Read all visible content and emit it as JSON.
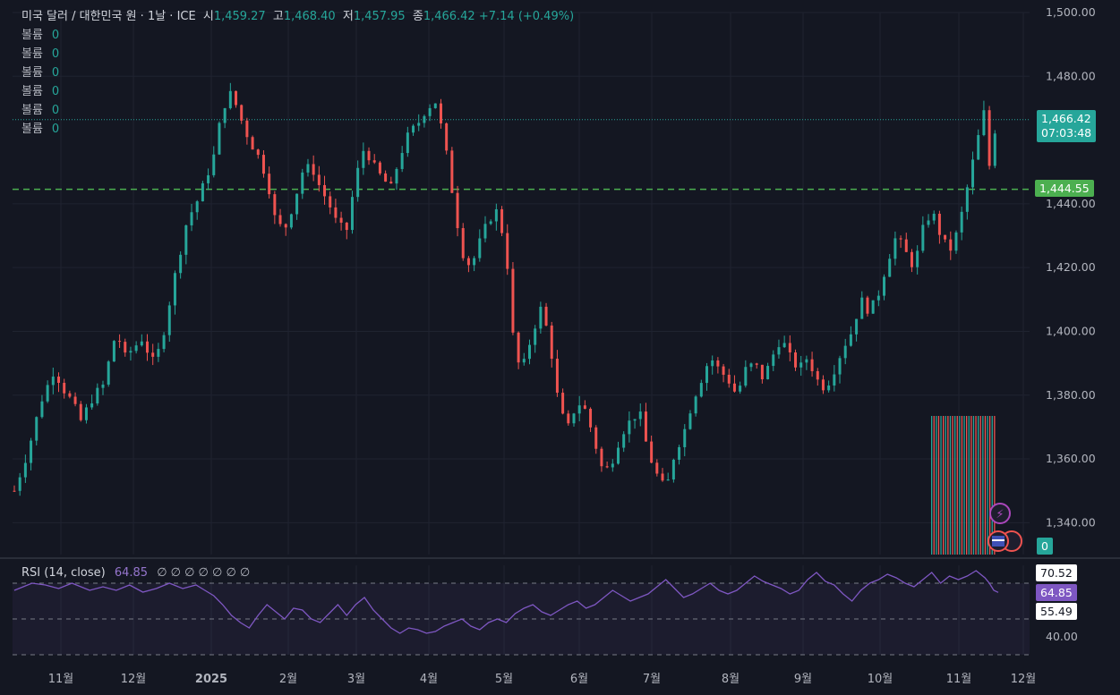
{
  "legend": {
    "symbol": "미국 달러 / 대한민국 원 · 1날 · ICE",
    "open_label": "시",
    "open": "1,459.27",
    "high_label": "고",
    "high": "1,468.40",
    "low_label": "저",
    "low": "1,457.95",
    "close_label": "종",
    "close": "1,466.42",
    "change": "+7.14 (+0.49%)",
    "volume_rows": [
      {
        "label": "볼륨",
        "value": "0"
      },
      {
        "label": "볼륨",
        "value": "0"
      },
      {
        "label": "볼륨",
        "value": "0"
      },
      {
        "label": "볼륨",
        "value": "0"
      },
      {
        "label": "볼륨",
        "value": "0"
      },
      {
        "label": "볼륨",
        "value": "0"
      }
    ]
  },
  "price_tag": {
    "value": "1,466.42",
    "countdown": "07:03:48"
  },
  "line_tag": {
    "value": "1,444.55"
  },
  "volume_tag": {
    "value": "0"
  },
  "rsi": {
    "title": "RSI (14, close)",
    "value": "64.85",
    "empty_values": "∅ ∅ ∅ ∅ ∅ ∅ ∅",
    "tag_upper": "70.52",
    "tag_value": "64.85",
    "tag_lower": "55.49",
    "axis_label": "40.00"
  },
  "colors": {
    "up": "#26a69a",
    "down": "#ef5350",
    "rsi": "#7e57c2",
    "line": "#4caf50"
  },
  "chart_data": {
    "type": "candlestick",
    "y_ticks": [
      "1,500.00",
      "1,480.00",
      "1,440.00",
      "1,420.00",
      "1,400.00",
      "1,380.00",
      "1,360.00",
      "1,340.00"
    ],
    "ylim": [
      1330,
      1500
    ],
    "x_ticks": [
      "11월",
      "12월",
      "2025",
      "2월",
      "3월",
      "4월",
      "5월",
      "6월",
      "7월",
      "8월",
      "9월",
      "10월",
      "11월",
      "12월"
    ],
    "horizontal_line": 1444.55,
    "series": [
      {
        "name": "close",
        "points": [
          [
            0,
            1350
          ],
          [
            6,
            1362
          ],
          [
            12,
            1378
          ],
          [
            18,
            1388
          ],
          [
            22,
            1382
          ],
          [
            26,
            1378
          ],
          [
            30,
            1372
          ],
          [
            36,
            1380
          ],
          [
            40,
            1383
          ],
          [
            46,
            1400
          ],
          [
            50,
            1392
          ],
          [
            54,
            1395
          ],
          [
            58,
            1398
          ],
          [
            62,
            1390
          ],
          [
            66,
            1395
          ],
          [
            72,
            1416
          ],
          [
            78,
            1435
          ],
          [
            82,
            1440
          ],
          [
            86,
            1447
          ],
          [
            90,
            1455
          ],
          [
            94,
            1470
          ],
          [
            98,
            1475
          ],
          [
            102,
            1467
          ],
          [
            106,
            1460
          ],
          [
            110,
            1455
          ],
          [
            114,
            1448
          ],
          [
            118,
            1434
          ],
          [
            122,
            1432
          ],
          [
            126,
            1440
          ],
          [
            130,
            1450
          ],
          [
            134,
            1452
          ],
          [
            138,
            1445
          ],
          [
            142,
            1440
          ],
          [
            146,
            1433
          ],
          [
            150,
            1432
          ],
          [
            154,
            1448
          ],
          [
            158,
            1458
          ],
          [
            162,
            1452
          ],
          [
            166,
            1448
          ],
          [
            170,
            1445
          ],
          [
            174,
            1455
          ],
          [
            178,
            1462
          ],
          [
            182,
            1465
          ],
          [
            186,
            1470
          ],
          [
            190,
            1472
          ],
          [
            194,
            1460
          ],
          [
            198,
            1442
          ],
          [
            202,
            1425
          ],
          [
            206,
            1420
          ],
          [
            210,
            1428
          ],
          [
            214,
            1435
          ],
          [
            218,
            1438
          ],
          [
            222,
            1425
          ],
          [
            226,
            1390
          ],
          [
            230,
            1390
          ],
          [
            234,
            1400
          ],
          [
            238,
            1408
          ],
          [
            242,
            1395
          ],
          [
            246,
            1375
          ],
          [
            250,
            1370
          ],
          [
            254,
            1378
          ],
          [
            258,
            1375
          ],
          [
            262,
            1365
          ],
          [
            266,
            1355
          ],
          [
            270,
            1360
          ],
          [
            274,
            1368
          ],
          [
            278,
            1372
          ],
          [
            282,
            1375
          ],
          [
            286,
            1362
          ],
          [
            290,
            1355
          ],
          [
            294,
            1350
          ],
          [
            298,
            1362
          ],
          [
            302,
            1368
          ],
          [
            306,
            1378
          ],
          [
            310,
            1385
          ],
          [
            314,
            1392
          ],
          [
            318,
            1388
          ],
          [
            322,
            1385
          ],
          [
            326,
            1380
          ],
          [
            330,
            1388
          ],
          [
            334,
            1390
          ],
          [
            338,
            1385
          ],
          [
            342,
            1392
          ],
          [
            346,
            1398
          ],
          [
            350,
            1392
          ],
          [
            354,
            1388
          ],
          [
            358,
            1392
          ],
          [
            362,
            1385
          ],
          [
            366,
            1382
          ],
          [
            370,
            1388
          ],
          [
            374,
            1395
          ],
          [
            378,
            1400
          ],
          [
            382,
            1410
          ],
          [
            386,
            1406
          ],
          [
            390,
            1412
          ],
          [
            394,
            1422
          ],
          [
            398,
            1430
          ],
          [
            402,
            1425
          ],
          [
            406,
            1420
          ],
          [
            410,
            1432
          ],
          [
            414,
            1438
          ],
          [
            418,
            1430
          ],
          [
            422,
            1425
          ],
          [
            426,
            1432
          ],
          [
            430,
            1445
          ],
          [
            434,
            1458
          ],
          [
            438,
            1470
          ],
          [
            440,
            1452
          ],
          [
            442,
            1462
          ],
          [
            444,
            1466.42
          ]
        ]
      }
    ],
    "rsi_series": {
      "name": "RSI (14, close)",
      "levels": [
        70.52,
        55.49,
        40
      ],
      "points": [
        [
          0,
          66
        ],
        [
          8,
          70
        ],
        [
          14,
          69
        ],
        [
          20,
          67
        ],
        [
          26,
          70
        ],
        [
          34,
          66
        ],
        [
          40,
          68
        ],
        [
          46,
          66
        ],
        [
          52,
          69
        ],
        [
          58,
          65
        ],
        [
          64,
          67
        ],
        [
          70,
          70
        ],
        [
          76,
          67
        ],
        [
          82,
          69
        ],
        [
          86,
          66
        ],
        [
          90,
          63
        ],
        [
          94,
          58
        ],
        [
          98,
          52
        ],
        [
          102,
          48
        ],
        [
          106,
          45
        ],
        [
          110,
          52
        ],
        [
          114,
          58
        ],
        [
          118,
          54
        ],
        [
          122,
          50
        ],
        [
          126,
          56
        ],
        [
          130,
          55
        ],
        [
          134,
          50
        ],
        [
          138,
          48
        ],
        [
          142,
          53
        ],
        [
          146,
          58
        ],
        [
          150,
          52
        ],
        [
          154,
          58
        ],
        [
          158,
          62
        ],
        [
          162,
          55
        ],
        [
          166,
          50
        ],
        [
          170,
          45
        ],
        [
          174,
          42
        ],
        [
          178,
          45
        ],
        [
          182,
          44
        ],
        [
          186,
          42
        ],
        [
          190,
          43
        ],
        [
          194,
          46
        ],
        [
          198,
          48
        ],
        [
          202,
          50
        ],
        [
          206,
          46
        ],
        [
          210,
          44
        ],
        [
          214,
          48
        ],
        [
          218,
          50
        ],
        [
          222,
          48
        ],
        [
          226,
          53
        ],
        [
          230,
          56
        ],
        [
          234,
          58
        ],
        [
          238,
          54
        ],
        [
          242,
          52
        ],
        [
          246,
          55
        ],
        [
          250,
          58
        ],
        [
          254,
          60
        ],
        [
          258,
          56
        ],
        [
          262,
          58
        ],
        [
          266,
          62
        ],
        [
          270,
          66
        ],
        [
          274,
          63
        ],
        [
          278,
          60
        ],
        [
          282,
          62
        ],
        [
          286,
          64
        ],
        [
          290,
          68
        ],
        [
          294,
          72
        ],
        [
          298,
          67
        ],
        [
          302,
          62
        ],
        [
          306,
          64
        ],
        [
          310,
          67
        ],
        [
          314,
          70
        ],
        [
          318,
          66
        ],
        [
          322,
          64
        ],
        [
          326,
          66
        ],
        [
          330,
          70
        ],
        [
          334,
          74
        ],
        [
          338,
          71
        ],
        [
          342,
          69
        ],
        [
          346,
          67
        ],
        [
          350,
          64
        ],
        [
          354,
          66
        ],
        [
          358,
          72
        ],
        [
          362,
          76
        ],
        [
          366,
          71
        ],
        [
          370,
          69
        ],
        [
          374,
          64
        ],
        [
          378,
          60
        ],
        [
          382,
          66
        ],
        [
          386,
          70
        ],
        [
          390,
          72
        ],
        [
          394,
          75
        ],
        [
          398,
          73
        ],
        [
          402,
          70
        ],
        [
          406,
          68
        ],
        [
          410,
          72
        ],
        [
          414,
          76
        ],
        [
          418,
          70
        ],
        [
          422,
          74
        ],
        [
          426,
          72
        ],
        [
          430,
          74
        ],
        [
          434,
          77
        ],
        [
          438,
          73
        ],
        [
          440,
          70
        ],
        [
          442,
          66
        ],
        [
          444,
          64.85
        ]
      ]
    }
  }
}
